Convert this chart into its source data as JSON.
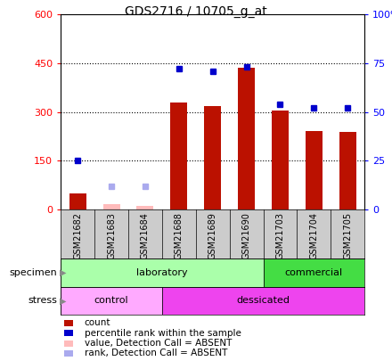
{
  "title": "GDS2716 / 10705_g_at",
  "samples": [
    "GSM21682",
    "GSM21683",
    "GSM21684",
    "GSM21688",
    "GSM21689",
    "GSM21690",
    "GSM21703",
    "GSM21704",
    "GSM21705"
  ],
  "count_values": [
    50,
    15,
    10,
    330,
    318,
    435,
    305,
    240,
    238
  ],
  "count_absent": [
    false,
    true,
    true,
    false,
    false,
    false,
    false,
    false,
    false
  ],
  "rank_values": [
    25,
    null,
    null,
    72,
    71,
    73,
    54,
    52,
    52
  ],
  "rank_absent": [
    false,
    false,
    false,
    false,
    false,
    false,
    false,
    false,
    false
  ],
  "absent_rank_indices": [
    1,
    2
  ],
  "absent_rank_values": [
    12,
    12
  ],
  "bar_color_present": "#bb1100",
  "bar_color_absent": "#ffbbbb",
  "rank_color_present": "#0000cc",
  "rank_color_absent": "#aaaaee",
  "ylim_left": [
    0,
    600
  ],
  "ylim_right": [
    0,
    100
  ],
  "yticks_left": [
    0,
    150,
    300,
    450,
    600
  ],
  "yticks_right": [
    0,
    25,
    50,
    75,
    100
  ],
  "specimen_groups": [
    {
      "label": "laboratory",
      "start": 0,
      "end": 6,
      "color": "#aaffaa"
    },
    {
      "label": "commercial",
      "start": 6,
      "end": 9,
      "color": "#44dd44"
    }
  ],
  "stress_groups": [
    {
      "label": "control",
      "start": 0,
      "end": 3,
      "color": "#ffaaff"
    },
    {
      "label": "dessicated",
      "start": 3,
      "end": 9,
      "color": "#ee44ee"
    }
  ],
  "legend_items": [
    {
      "label": "count",
      "color": "#bb1100"
    },
    {
      "label": "percentile rank within the sample",
      "color": "#0000cc"
    },
    {
      "label": "value, Detection Call = ABSENT",
      "color": "#ffbbbb"
    },
    {
      "label": "rank, Detection Call = ABSENT",
      "color": "#aaaaee"
    }
  ]
}
